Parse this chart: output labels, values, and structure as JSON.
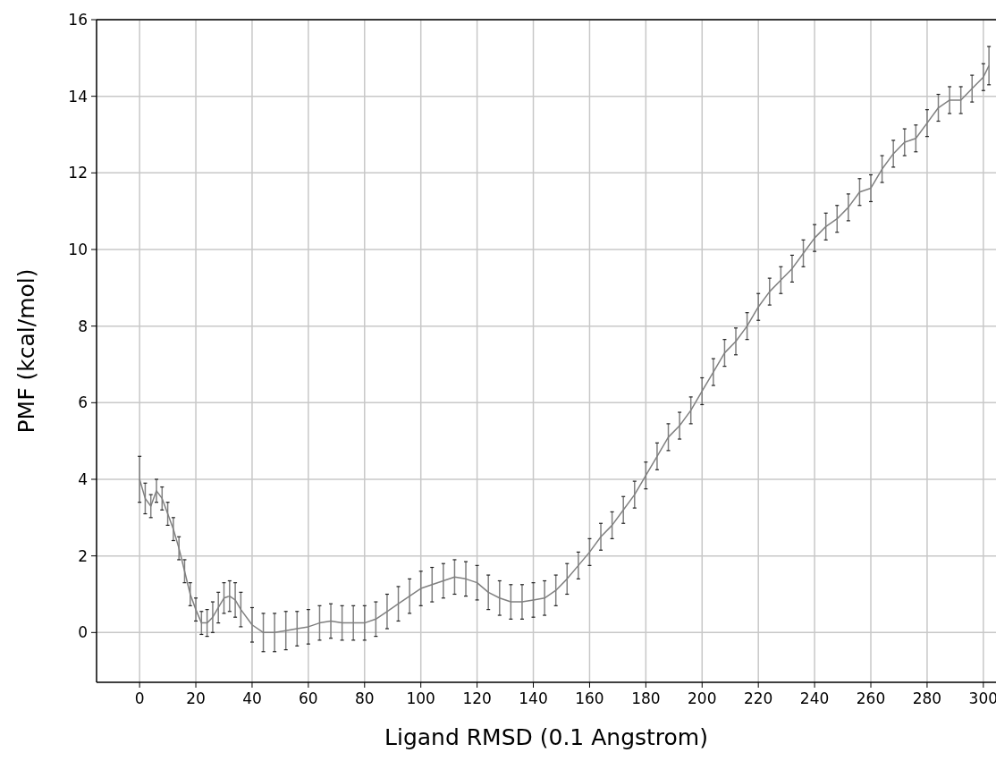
{
  "chart_data": {
    "type": "line",
    "xlabel": "Ligand RMSD (0.1 Angstrom)",
    "ylabel": "PMF (kcal/mol)",
    "xlim": [
      -15.3,
      304.5
    ],
    "ylim": [
      -1.3,
      16
    ],
    "xticks": [
      0,
      20,
      40,
      60,
      80,
      100,
      120,
      140,
      160,
      180,
      200,
      220,
      240,
      260,
      280,
      300
    ],
    "yticks": [
      0,
      2,
      4,
      6,
      8,
      10,
      12,
      14,
      16
    ],
    "grid": true,
    "marker": "none",
    "line_style": "solid",
    "series": [
      {
        "color": "#808080",
        "x": [
          0,
          2,
          4,
          6,
          8,
          10,
          12,
          14,
          16,
          18,
          20,
          22,
          24,
          26,
          28,
          30,
          32,
          34,
          36,
          40,
          44,
          48,
          52,
          56,
          60,
          64,
          68,
          72,
          76,
          80,
          84,
          88,
          92,
          96,
          100,
          104,
          108,
          112,
          116,
          120,
          124,
          128,
          132,
          136,
          140,
          144,
          148,
          152,
          156,
          160,
          164,
          168,
          172,
          176,
          180,
          184,
          188,
          192,
          196,
          200,
          204,
          208,
          212,
          216,
          220,
          224,
          228,
          232,
          236,
          240,
          244,
          248,
          252,
          256,
          260,
          264,
          268,
          272,
          276,
          280,
          284,
          288,
          292,
          296,
          300,
          302
        ],
        "values": [
          4.0,
          3.5,
          3.3,
          3.7,
          3.5,
          3.1,
          2.7,
          2.2,
          1.6,
          1.0,
          0.6,
          0.25,
          0.25,
          0.4,
          0.65,
          0.9,
          0.95,
          0.85,
          0.6,
          0.2,
          0.0,
          0.0,
          0.05,
          0.1,
          0.15,
          0.25,
          0.3,
          0.25,
          0.25,
          0.25,
          0.35,
          0.55,
          0.75,
          0.95,
          1.15,
          1.25,
          1.35,
          1.45,
          1.4,
          1.3,
          1.05,
          0.9,
          0.8,
          0.8,
          0.85,
          0.9,
          1.1,
          1.4,
          1.75,
          2.1,
          2.5,
          2.8,
          3.2,
          3.6,
          4.1,
          4.6,
          5.1,
          5.4,
          5.8,
          6.3,
          6.8,
          7.3,
          7.6,
          8.0,
          8.5,
          8.9,
          9.2,
          9.5,
          9.9,
          10.3,
          10.6,
          10.8,
          11.1,
          11.5,
          11.6,
          12.1,
          12.5,
          12.8,
          12.9,
          13.3,
          13.7,
          13.9,
          13.9,
          14.2,
          14.5,
          14.8
        ],
        "errors": [
          0.6,
          0.4,
          0.3,
          0.3,
          0.3,
          0.3,
          0.3,
          0.3,
          0.3,
          0.3,
          0.3,
          0.3,
          0.35,
          0.4,
          0.4,
          0.4,
          0.4,
          0.45,
          0.45,
          0.45,
          0.5,
          0.5,
          0.5,
          0.45,
          0.45,
          0.45,
          0.45,
          0.45,
          0.45,
          0.45,
          0.45,
          0.45,
          0.45,
          0.45,
          0.45,
          0.45,
          0.45,
          0.45,
          0.45,
          0.45,
          0.45,
          0.45,
          0.45,
          0.45,
          0.45,
          0.45,
          0.4,
          0.4,
          0.35,
          0.35,
          0.35,
          0.35,
          0.35,
          0.35,
          0.35,
          0.35,
          0.35,
          0.35,
          0.35,
          0.35,
          0.35,
          0.35,
          0.35,
          0.35,
          0.35,
          0.35,
          0.35,
          0.35,
          0.35,
          0.35,
          0.35,
          0.35,
          0.35,
          0.35,
          0.35,
          0.35,
          0.35,
          0.35,
          0.35,
          0.35,
          0.35,
          0.35,
          0.35,
          0.35,
          0.35,
          0.5
        ]
      }
    ]
  }
}
